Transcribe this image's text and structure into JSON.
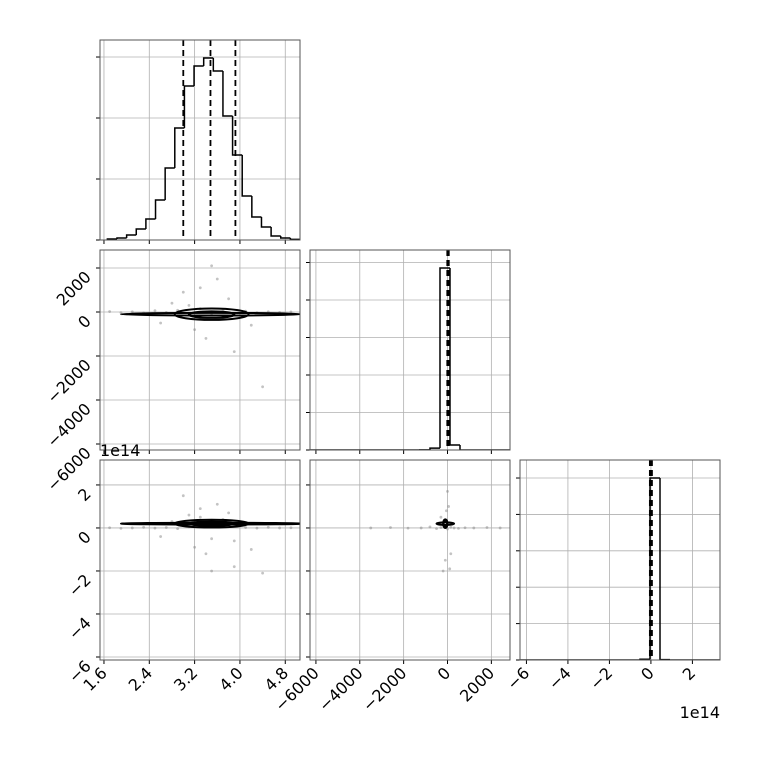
{
  "chart_data": [
    {
      "type": "histogram",
      "color": "#000000",
      "grid": true,
      "bins": [
        1.66,
        1.83,
        2.0,
        2.17,
        2.34,
        2.51,
        2.68,
        2.85,
        3.02,
        3.19,
        3.36,
        3.53,
        3.7,
        3.87,
        4.04,
        4.21,
        4.38,
        4.55,
        4.72,
        4.89,
        5.06
      ],
      "values": [
        16,
        33,
        82,
        180,
        344,
        656,
        1180,
        1836,
        2525,
        2852,
        2984,
        2770,
        2033,
        1393,
        721,
        377,
        213,
        66,
        33,
        10
      ],
      "quantiles": [
        3.0,
        3.48,
        3.92
      ],
      "xlim": [
        1.53,
        5.06
      ],
      "xticks": [
        1.6,
        2.4,
        3.2,
        4,
        4.8
      ],
      "ylim": [
        0,
        3279
      ],
      "yticks": [
        0,
        1000,
        2000,
        3000
      ]
    },
    {
      "type": "scatter",
      "color": "#000000",
      "grid": true,
      "x": [
        1.7,
        1.9,
        2.1,
        2.3,
        2.5,
        2.7,
        2.9,
        3.1,
        3.3,
        3.5,
        3.7,
        3.9,
        4.1,
        4.3,
        4.5,
        4.7,
        4.9,
        3.0,
        3.4,
        3.8,
        3.2,
        3.6,
        2.8,
        4.2,
        3.5,
        3.9,
        3.1,
        4.4,
        3.3,
        2.6
      ],
      "y": [
        20,
        -30,
        10,
        -40,
        60,
        -20,
        80,
        -100,
        150,
        -60,
        90,
        -120,
        40,
        -30,
        10,
        -20,
        5,
        900,
        -1200,
        600,
        -800,
        1500,
        400,
        -600,
        2100,
        -1800,
        300,
        -3400,
        1100,
        -500
      ],
      "contours": [
        {
          "x": 3.5,
          "y": -100,
          "rx": 1.6,
          "ry": 60
        },
        {
          "x": 3.5,
          "y": -100,
          "rx": 0.65,
          "ry": 260
        },
        {
          "x": 3.5,
          "y": -120,
          "rx": 0.4,
          "ry": 150
        }
      ],
      "xlim": [
        1.53,
        5.06
      ],
      "xticks": [
        1.6,
        2.4,
        3.2,
        4,
        4.8
      ],
      "ylim": [
        -6273,
        2818
      ],
      "yticks": [
        2000,
        0,
        {
          "value": -2000,
          "label": "−2000"
        },
        {
          "value": -4000,
          "label": "−4000"
        },
        {
          "value": -6000,
          "label": "−6000"
        }
      ]
    },
    {
      "type": "histogram",
      "color": "#000000",
      "grid": true,
      "bins": [
        -6270,
        -5814,
        -5358,
        -4902,
        -4446,
        -3990,
        -3534,
        -3078,
        -2622,
        -2166,
        -1710,
        -1254,
        -798,
        -342,
        114,
        570,
        1026,
        1482,
        1938,
        2394,
        2850
      ],
      "values": [
        0,
        0,
        0,
        0,
        0,
        0,
        0,
        0,
        0,
        0,
        0,
        5,
        50,
        4853,
        133,
        0,
        0,
        0,
        0,
        0
      ],
      "quantiles": [
        -10,
        24,
        58
      ],
      "xlim": [
        -6270,
        2850
      ],
      "xticks": [
        -6000,
        -4000,
        -2000,
        0,
        2000
      ],
      "ylim": [
        0,
        5333
      ],
      "yticks": [
        0,
        1000,
        2000,
        3000,
        4000,
        5000
      ]
    },
    {
      "type": "scatter",
      "color": "#000000",
      "grid": true,
      "y_offset_text": "1e14",
      "x": [
        1.7,
        1.9,
        2.1,
        2.3,
        2.5,
        2.7,
        2.9,
        3.1,
        3.3,
        3.5,
        3.7,
        3.9,
        4.1,
        4.3,
        4.5,
        4.7,
        4.9,
        3.0,
        3.4,
        3.8,
        3.2,
        3.6,
        2.8,
        4.2,
        3.5,
        3.9,
        3.1,
        4.4,
        3.3,
        2.6
      ],
      "y": [
        0.01,
        -0.02,
        0,
        0.03,
        -0.01,
        0.02,
        -0.03,
        0.05,
        0.9,
        -0.5,
        0.4,
        -0.6,
        0.02,
        -0.01,
        0.03,
        0,
        0.01,
        1.5,
        -1.2,
        0.7,
        -0.9,
        1.1,
        0.3,
        -1.0,
        -2.0,
        -1.8,
        0.6,
        -2.1,
        0.5,
        -0.4
      ],
      "contours": [
        {
          "x": 3.5,
          "y": 0.2,
          "rx": 1.6,
          "ry": 0.04
        },
        {
          "x": 3.5,
          "y": 0.2,
          "rx": 0.65,
          "ry": 0.18
        },
        {
          "x": 3.5,
          "y": 0.2,
          "rx": 0.4,
          "ry": 0.1
        }
      ],
      "xlim": [
        1.53,
        5.06
      ],
      "xticks": [
        1.6,
        2.4,
        3.2,
        {
          "value": 4,
          "label": "4.0"
        },
        4.8
      ],
      "ylim": [
        -6.14,
        3.16
      ],
      "yticks": [
        2,
        0,
        {
          "value": -2,
          "label": "−2"
        },
        {
          "value": -4,
          "label": "−4"
        },
        {
          "value": -6,
          "label": "−6"
        }
      ]
    },
    {
      "type": "scatter",
      "color": "#000000",
      "grid": true,
      "x": [
        -3500,
        -2600,
        -1800,
        -1200,
        -800,
        -500,
        -300,
        -150,
        0,
        150,
        300,
        500,
        800,
        1200,
        1800,
        2400,
        -200,
        -100,
        50,
        100,
        -50,
        150,
        -300,
        0
      ],
      "y": [
        0,
        0.02,
        -0.01,
        0,
        0.05,
        -0.03,
        0.02,
        0.1,
        -0.05,
        0.03,
        0,
        -0.02,
        0.01,
        0,
        0.02,
        0,
        -2.0,
        -1.5,
        1.0,
        -1.9,
        0.8,
        -1.2,
        0.5,
        1.7
      ],
      "contours": [
        {
          "x": -100,
          "y": 0.2,
          "rx": 400,
          "ry": 0.06
        },
        {
          "x": -100,
          "y": 0.2,
          "rx": 100,
          "ry": 0.2
        },
        {
          "x": -100,
          "y": 0.2,
          "rx": 80,
          "ry": 0.12
        }
      ],
      "xlim": [
        -6270,
        2850
      ],
      "xticks": [
        {
          "value": -6000,
          "label": "−6000"
        },
        {
          "value": -4000,
          "label": "−4000"
        },
        {
          "value": -2000,
          "label": "−2000"
        },
        0,
        2000
      ],
      "ylim": [
        -6.14,
        3.16
      ],
      "yticks": [
        -6,
        -4,
        -2,
        0,
        2
      ]
    },
    {
      "type": "histogram",
      "color": "#000000",
      "grid": true,
      "x_offset_text": "1e14",
      "bins": [
        -6.31,
        -5.828,
        -5.346,
        -4.864,
        -4.382,
        -3.9,
        -3.418,
        -2.936,
        -2.454,
        -1.972,
        -1.49,
        -1.008,
        -0.526,
        -0.044,
        0.438,
        0.92,
        1.402,
        1.884,
        2.366,
        2.848,
        3.33
      ],
      "values": [
        0,
        0,
        0,
        0,
        0,
        0,
        0,
        0,
        0,
        0,
        0,
        0,
        20,
        5000,
        10,
        0,
        0,
        0,
        0,
        0
      ],
      "quantiles": [
        -0.05,
        0,
        0.05
      ],
      "xlim": [
        -6.31,
        3.33
      ],
      "xticks": [
        {
          "value": -6,
          "label": "−6"
        },
        {
          "value": -4,
          "label": "−4"
        },
        {
          "value": -2,
          "label": "−2"
        },
        0,
        2
      ],
      "ylim": [
        0,
        5495
      ],
      "yticks": [
        0,
        1000,
        2000,
        3000,
        4000,
        5000
      ]
    }
  ]
}
